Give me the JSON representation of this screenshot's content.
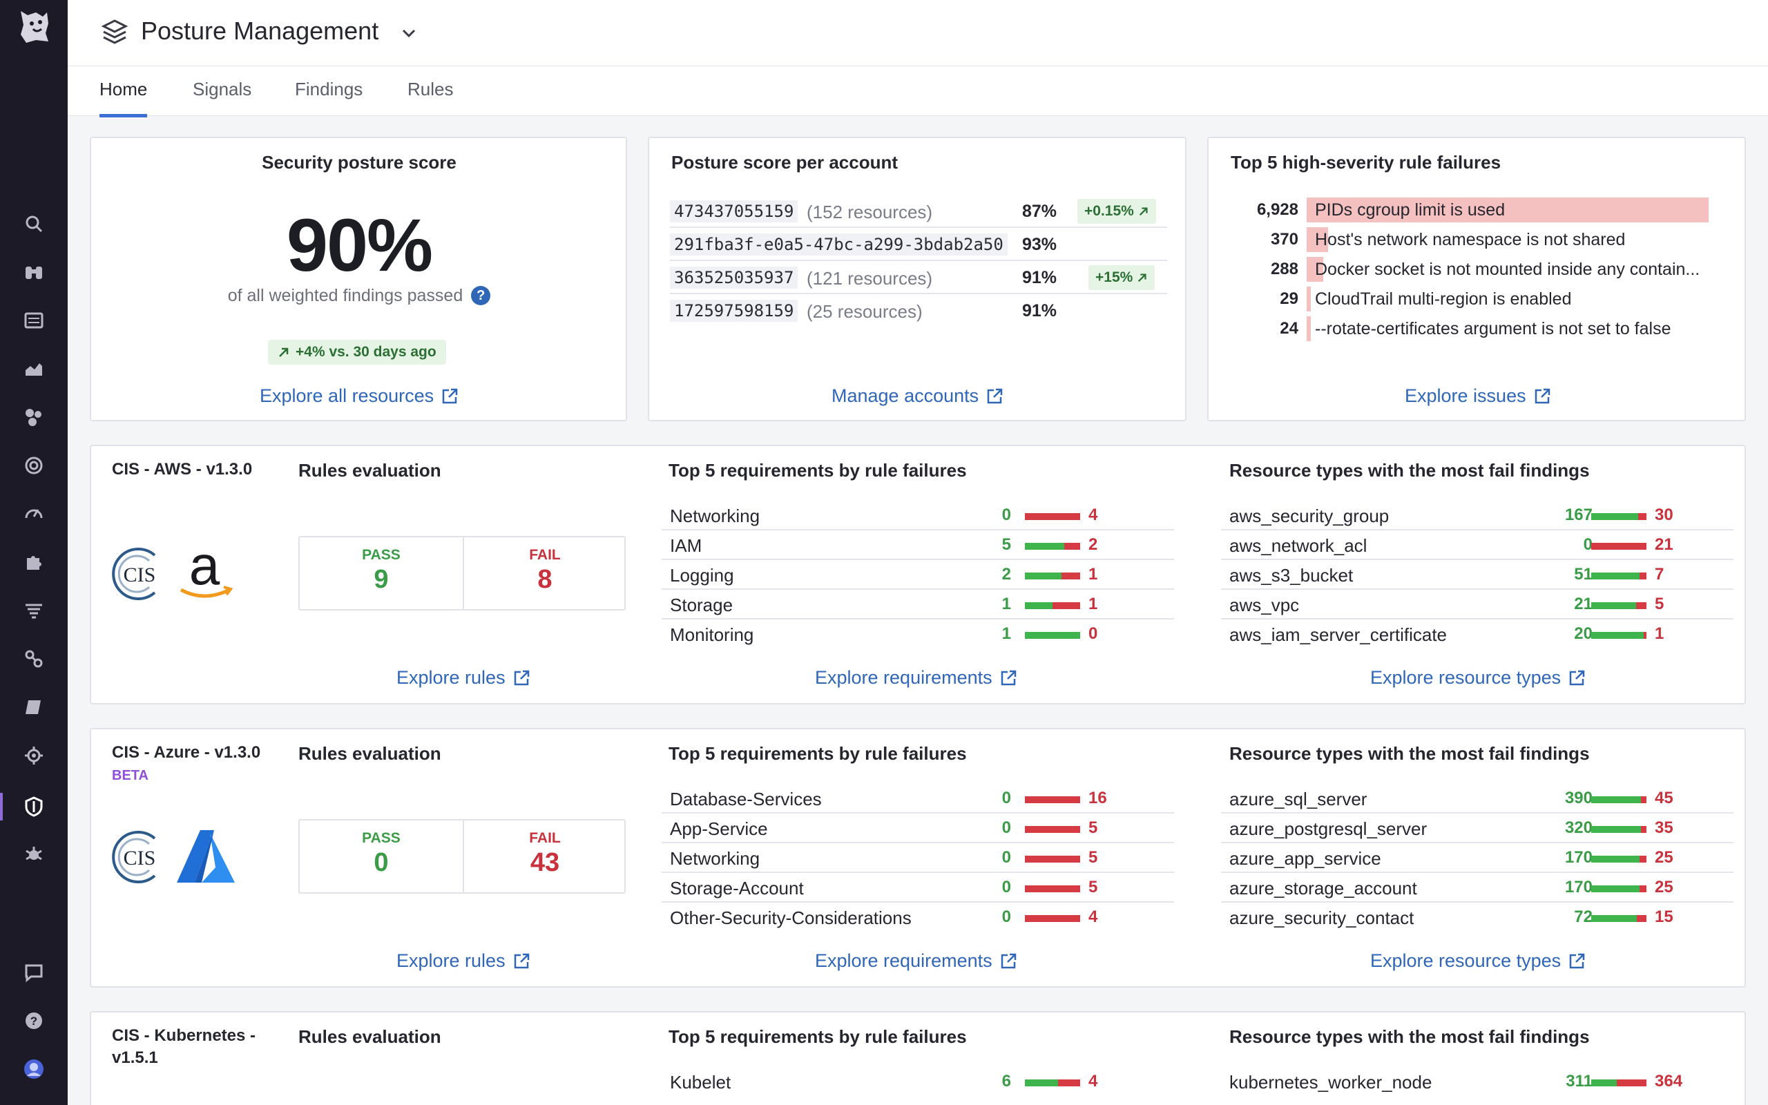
{
  "app": {
    "title": "Posture Management"
  },
  "tabs": [
    {
      "label": "Home",
      "active": true
    },
    {
      "label": "Signals"
    },
    {
      "label": "Findings"
    },
    {
      "label": "Rules"
    }
  ],
  "nav_icons": [
    "search-icon",
    "binoculars-icon",
    "logs-icon",
    "chart-icon",
    "cubes-icon",
    "target-icon",
    "gauge-icon",
    "puzzle-icon",
    "filter-list-icon",
    "link-icon",
    "notebook-icon",
    "gear-search-icon",
    "shield-icon",
    "bug-icon",
    "chat-icon",
    "help-icon",
    "user-avatar"
  ],
  "score": {
    "title": "Security posture score",
    "value": "90%",
    "subtitle": "of all weighted findings passed",
    "delta": "+4% vs. 30 days ago",
    "link": "Explore all resources"
  },
  "accounts": {
    "title": "Posture score per account",
    "rows": [
      {
        "id": "473437055159",
        "resources": "(152 resources)",
        "pct": "87%",
        "change": "+0.15%"
      },
      {
        "id": "291fba3f-e0a5-47bc-a299-3bdab2a50",
        "resources": "",
        "pct": "93%",
        "change": ""
      },
      {
        "id": "363525035937",
        "resources": "(121 resources)",
        "pct": "91%",
        "change": "+15%"
      },
      {
        "id": "172597598159",
        "resources": "(25 resources)",
        "pct": "91%",
        "change": ""
      }
    ],
    "link": "Manage accounts"
  },
  "failures": {
    "title": "Top 5 high-severity rule failures",
    "rows": [
      {
        "count": "6,928",
        "label": "PIDs cgroup limit is used",
        "fraction": 1.0
      },
      {
        "count": "370",
        "label": "Host's network namespace is not shared",
        "fraction": 0.053
      },
      {
        "count": "288",
        "label": "Docker socket is not mounted inside any contain...",
        "fraction": 0.042
      },
      {
        "count": "29",
        "label": "CloudTrail multi-region is enabled",
        "fraction": 0.004
      },
      {
        "count": "24",
        "label": "--rotate-certificates argument is not set to false",
        "fraction": 0.003
      }
    ],
    "link": "Explore issues"
  },
  "frameworks": [
    {
      "name": "CIS - AWS - v1.3.0",
      "beta": "",
      "logo": "aws-logo",
      "rules_title": "Rules evaluation",
      "pass_label": "PASS",
      "pass": "9",
      "fail_label": "FAIL",
      "fail": "8",
      "rules_link": "Explore rules",
      "req_title": "Top 5 requirements by rule failures",
      "requirements": [
        {
          "name": "Networking",
          "pass": "0",
          "fail": "4"
        },
        {
          "name": "IAM",
          "pass": "5",
          "fail": "2"
        },
        {
          "name": "Logging",
          "pass": "2",
          "fail": "1"
        },
        {
          "name": "Storage",
          "pass": "1",
          "fail": "1"
        },
        {
          "name": "Monitoring",
          "pass": "1",
          "fail": "0"
        }
      ],
      "req_link": "Explore requirements",
      "res_title": "Resource types with the most fail findings",
      "resources": [
        {
          "name": "aws_security_group",
          "pass": "167",
          "fail": "30"
        },
        {
          "name": "aws_network_acl",
          "pass": "0",
          "fail": "21"
        },
        {
          "name": "aws_s3_bucket",
          "pass": "51",
          "fail": "7"
        },
        {
          "name": "aws_vpc",
          "pass": "21",
          "fail": "5"
        },
        {
          "name": "aws_iam_server_certificate",
          "pass": "20",
          "fail": "1"
        }
      ],
      "res_link": "Explore resource types"
    },
    {
      "name": "CIS - Azure - v1.3.0",
      "beta": "BETA",
      "logo": "azure-logo",
      "rules_title": "Rules evaluation",
      "pass_label": "PASS",
      "pass": "0",
      "fail_label": "FAIL",
      "fail": "43",
      "rules_link": "Explore rules",
      "req_title": "Top 5 requirements by rule failures",
      "requirements": [
        {
          "name": "Database-Services",
          "pass": "0",
          "fail": "16"
        },
        {
          "name": "App-Service",
          "pass": "0",
          "fail": "5"
        },
        {
          "name": "Networking",
          "pass": "0",
          "fail": "5"
        },
        {
          "name": "Storage-Account",
          "pass": "0",
          "fail": "5"
        },
        {
          "name": "Other-Security-Considerations",
          "pass": "0",
          "fail": "4"
        }
      ],
      "req_link": "Explore requirements",
      "res_title": "Resource types with the most fail findings",
      "resources": [
        {
          "name": "azure_sql_server",
          "pass": "390",
          "fail": "45"
        },
        {
          "name": "azure_postgresql_server",
          "pass": "320",
          "fail": "35"
        },
        {
          "name": "azure_app_service",
          "pass": "170",
          "fail": "25"
        },
        {
          "name": "azure_storage_account",
          "pass": "170",
          "fail": "25"
        },
        {
          "name": "azure_security_contact",
          "pass": "72",
          "fail": "15"
        }
      ],
      "res_link": "Explore resource types"
    },
    {
      "name": "CIS - Kubernetes - v1.5.1",
      "beta": "",
      "rules_title": "Rules evaluation",
      "req_title": "Top 5 requirements by rule failures",
      "requirements": [
        {
          "name": "Kubelet",
          "pass": "6",
          "fail": "4"
        }
      ],
      "res_title": "Resource types with the most fail findings",
      "resources": [
        {
          "name": "kubernetes_worker_node",
          "pass": "311",
          "fail": "364"
        }
      ]
    }
  ]
}
